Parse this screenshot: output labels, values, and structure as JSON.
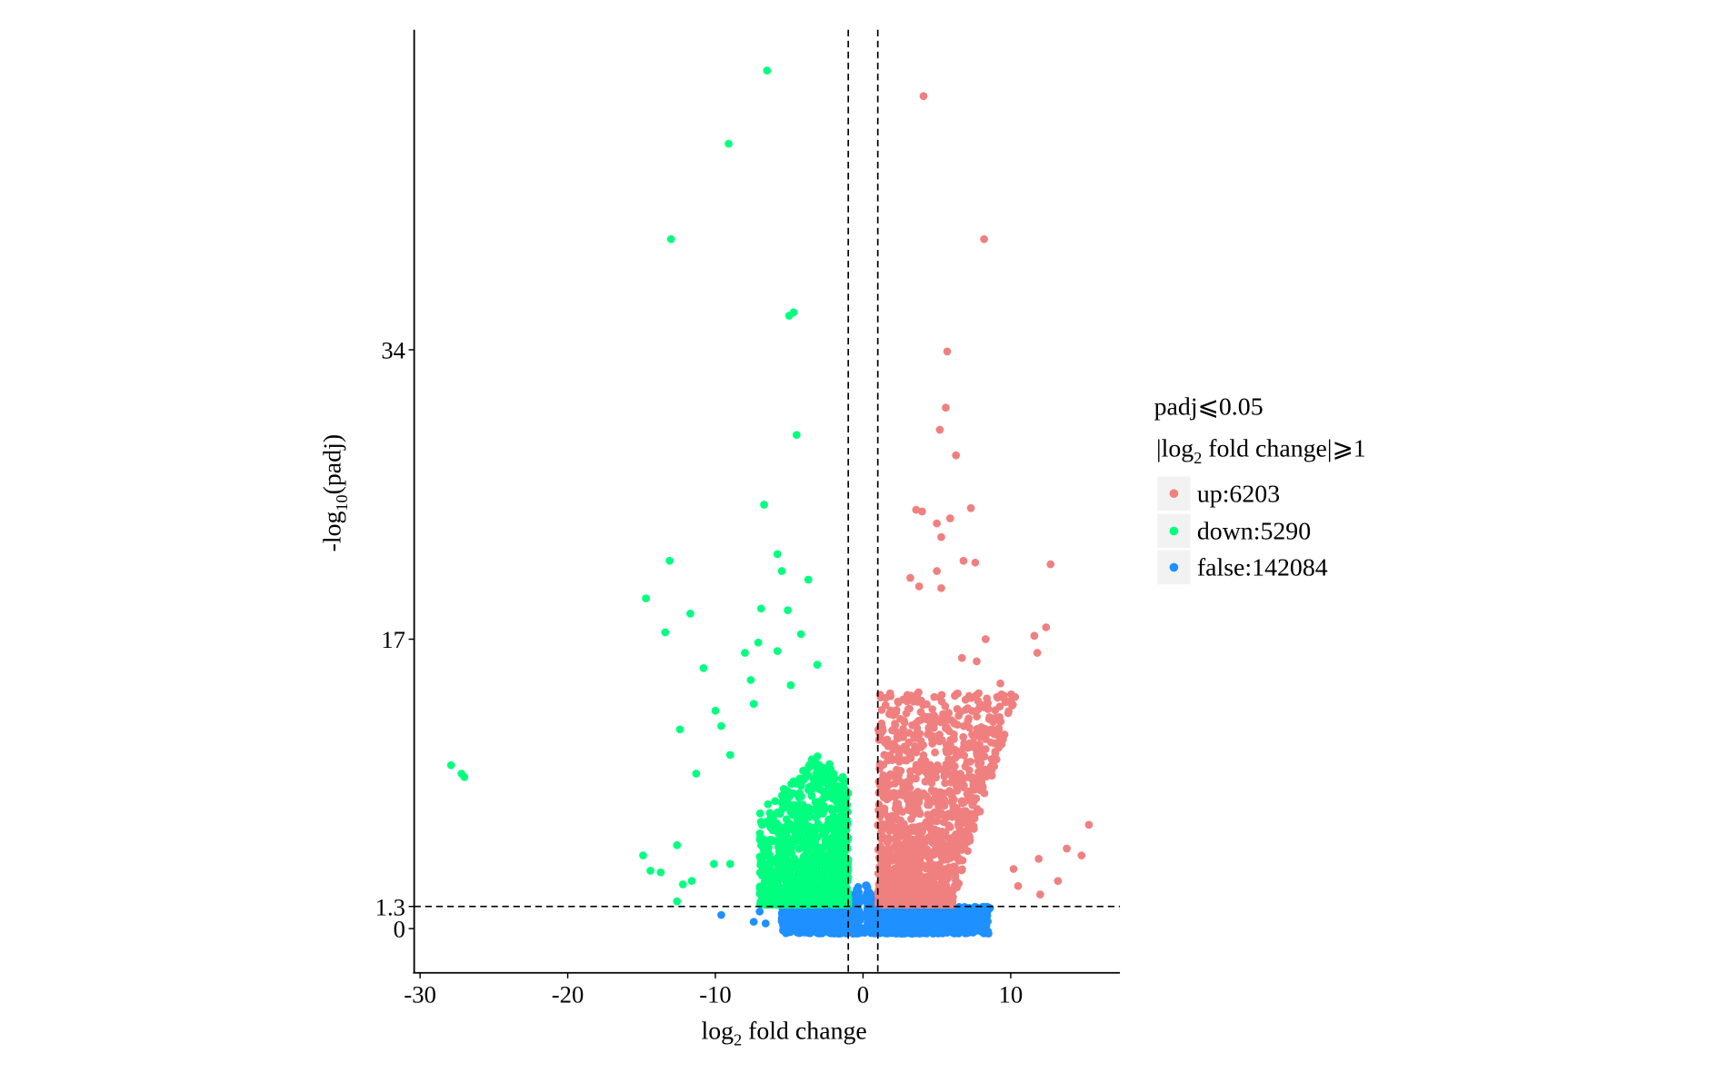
{
  "chart_data": {
    "type": "scatter",
    "title": "",
    "xlabel": {
      "main": "log",
      "sub": "2",
      "rest": " fold change"
    },
    "ylabel": {
      "main": "-log",
      "sub": "10",
      "rest": "(padj)"
    },
    "xlim": [
      -30.4,
      17.4
    ],
    "ylim": [
      -2.6,
      52.8
    ],
    "x_ticks": [
      -30,
      -20,
      -10,
      0,
      10
    ],
    "x_tick_labels": [
      "-30",
      "-20",
      "-10",
      "0",
      "10"
    ],
    "y_ticks": [
      0,
      1.3,
      17,
      34
    ],
    "y_tick_labels": [
      "0",
      "1.3",
      "17",
      "34"
    ],
    "threshold_lines": {
      "vertical": [
        -1,
        1
      ],
      "horizontal": 1.3
    },
    "grid": false,
    "legend": {
      "placement": "right",
      "title_line1": "padj⩽0.05",
      "title_line2": {
        "pre": "|log",
        "sub": "2",
        "post": " fold change|⩾1"
      },
      "entries": [
        {
          "key": "up",
          "label": "up:6203",
          "count": 6203,
          "color": "#F08080"
        },
        {
          "key": "down",
          "label": "down:5290",
          "count": 5290,
          "color": "#00FF7F"
        },
        {
          "key": "false",
          "label": "false:142084",
          "count": 142084,
          "color": "#1E90FF"
        }
      ]
    },
    "series": [
      {
        "name": "down",
        "color": "#00FF7F",
        "outliers": [
          [
            -6.5,
            50.4
          ],
          [
            -9.1,
            46.1
          ],
          [
            -13.0,
            40.5
          ],
          [
            -4.7,
            36.2
          ],
          [
            -5.0,
            36.0
          ],
          [
            -4.5,
            29.0
          ],
          [
            -6.7,
            24.9
          ],
          [
            -13.1,
            21.6
          ],
          [
            -14.7,
            19.4
          ],
          [
            -11.7,
            18.5
          ],
          [
            -13.4,
            17.4
          ],
          [
            -5.8,
            22.0
          ],
          [
            -5.5,
            21.0
          ],
          [
            -3.7,
            20.5
          ],
          [
            -6.9,
            18.8
          ],
          [
            -5.1,
            18.7
          ],
          [
            -10.8,
            15.3
          ],
          [
            -27.9,
            9.6
          ],
          [
            -27.2,
            9.1
          ],
          [
            -27.0,
            8.9
          ],
          [
            -12.4,
            11.7
          ],
          [
            -11.3,
            9.1
          ],
          [
            -14.9,
            4.3
          ],
          [
            -14.4,
            3.4
          ],
          [
            -13.7,
            3.3
          ],
          [
            -12.6,
            4.9
          ],
          [
            -12.2,
            2.6
          ],
          [
            -11.6,
            2.8
          ],
          [
            -12.6,
            1.6
          ],
          [
            -10.1,
            3.8
          ],
          [
            -9.0,
            3.8
          ],
          [
            -9.6,
            11.9
          ],
          [
            -10.0,
            12.8
          ],
          [
            -9.0,
            10.2
          ],
          [
            -7.6,
            14.6
          ],
          [
            -8.0,
            16.2
          ],
          [
            -7.1,
            16.8
          ],
          [
            -4.2,
            17.3
          ],
          [
            -5.8,
            16.3
          ],
          [
            -3.1,
            15.5
          ],
          [
            -4.9,
            14.3
          ],
          [
            -7.4,
            13.2
          ]
        ]
      },
      {
        "name": "up",
        "color": "#F08080",
        "outliers": [
          [
            4.1,
            48.9
          ],
          [
            8.2,
            40.5
          ],
          [
            5.7,
            33.9
          ],
          [
            5.6,
            30.6
          ],
          [
            5.2,
            29.3
          ],
          [
            6.3,
            27.8
          ],
          [
            7.3,
            24.7
          ],
          [
            12.7,
            21.4
          ],
          [
            12.4,
            17.7
          ],
          [
            11.6,
            17.2
          ],
          [
            11.8,
            16.2
          ],
          [
            9.3,
            14.4
          ],
          [
            15.3,
            6.1
          ],
          [
            13.8,
            4.7
          ],
          [
            14.8,
            4.3
          ],
          [
            13.2,
            2.8
          ],
          [
            12.0,
            2.0
          ],
          [
            10.5,
            2.5
          ],
          [
            11.9,
            4.1
          ],
          [
            10.2,
            3.5
          ],
          [
            10.1,
            13.1
          ],
          [
            4.0,
            24.5
          ],
          [
            3.6,
            24.6
          ],
          [
            5.9,
            24.1
          ],
          [
            5.0,
            23.8
          ],
          [
            5.3,
            23.0
          ],
          [
            6.8,
            21.6
          ],
          [
            7.6,
            21.5
          ],
          [
            5.0,
            21.0
          ],
          [
            3.2,
            20.6
          ],
          [
            3.8,
            20.1
          ],
          [
            5.3,
            20.0
          ],
          [
            8.3,
            17.0
          ],
          [
            6.7,
            15.9
          ],
          [
            7.7,
            15.7
          ]
        ]
      },
      {
        "name": "false",
        "color": "#1E90FF",
        "outliers": [
          [
            -9.6,
            0.8
          ],
          [
            -7.0,
            1.0
          ],
          [
            -7.4,
            0.4
          ],
          [
            -6.6,
            0.3
          ],
          [
            8.2,
            1.1
          ],
          [
            8.6,
            1.2
          ]
        ]
      }
    ]
  }
}
